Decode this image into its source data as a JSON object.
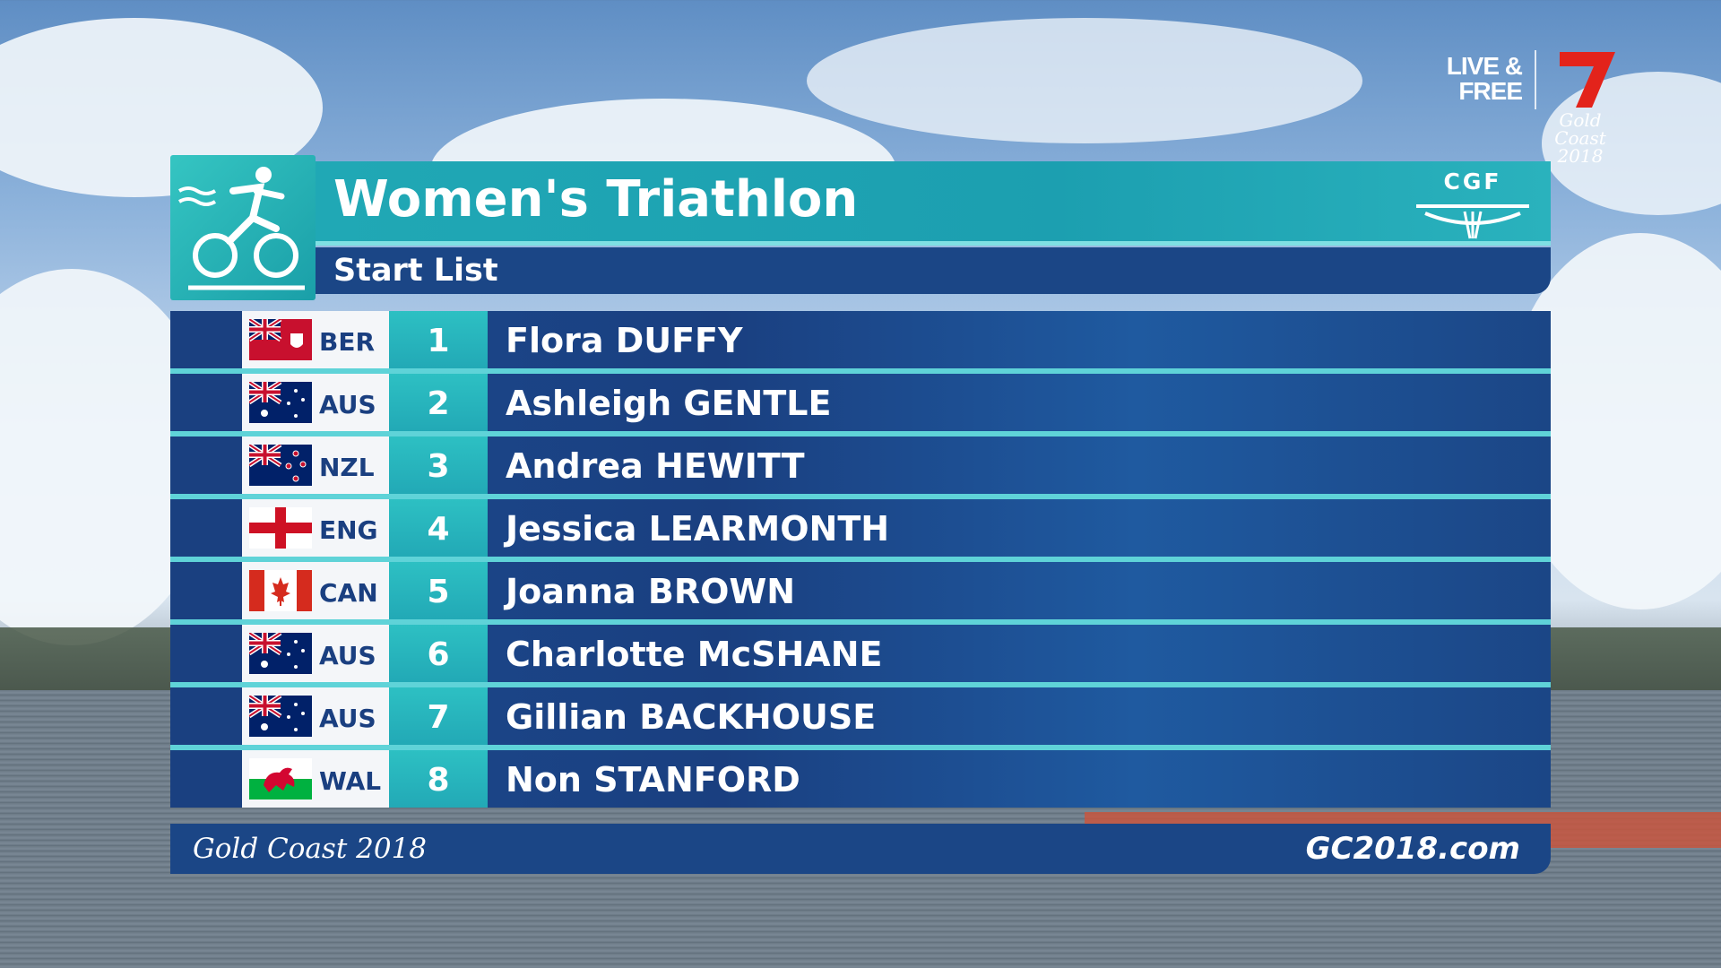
{
  "broadcaster": {
    "live_label": "LIVE & FREE",
    "channel": "7",
    "event_logo_text": "Gold Coast 2018"
  },
  "panel": {
    "title": "Women's Triathlon",
    "subtitle": "Start List",
    "organization": "CGF",
    "sport_icon": "triathlon-icon"
  },
  "athletes": [
    {
      "noc": "BER",
      "flag": "bermuda-flag",
      "rank": "1",
      "name": "Flora DUFFY"
    },
    {
      "noc": "AUS",
      "flag": "australia-flag",
      "rank": "2",
      "name": "Ashleigh GENTLE"
    },
    {
      "noc": "NZL",
      "flag": "new-zealand-flag",
      "rank": "3",
      "name": "Andrea HEWITT"
    },
    {
      "noc": "ENG",
      "flag": "england-flag",
      "rank": "4",
      "name": "Jessica LEARMONTH"
    },
    {
      "noc": "CAN",
      "flag": "canada-flag",
      "rank": "5",
      "name": "Joanna BROWN"
    },
    {
      "noc": "AUS",
      "flag": "australia-flag",
      "rank": "6",
      "name": "Charlotte McSHANE"
    },
    {
      "noc": "AUS",
      "flag": "australia-flag",
      "rank": "7",
      "name": "Gillian BACKHOUSE"
    },
    {
      "noc": "WAL",
      "flag": "wales-flag",
      "rank": "8",
      "name": "Non STANFORD"
    }
  ],
  "footer": {
    "left": "Gold Coast 2018",
    "right": "GC2018.com"
  },
  "colors": {
    "navy": "#1b4686",
    "teal": "#22a9b6",
    "light_teal": "#5fd3d8"
  }
}
